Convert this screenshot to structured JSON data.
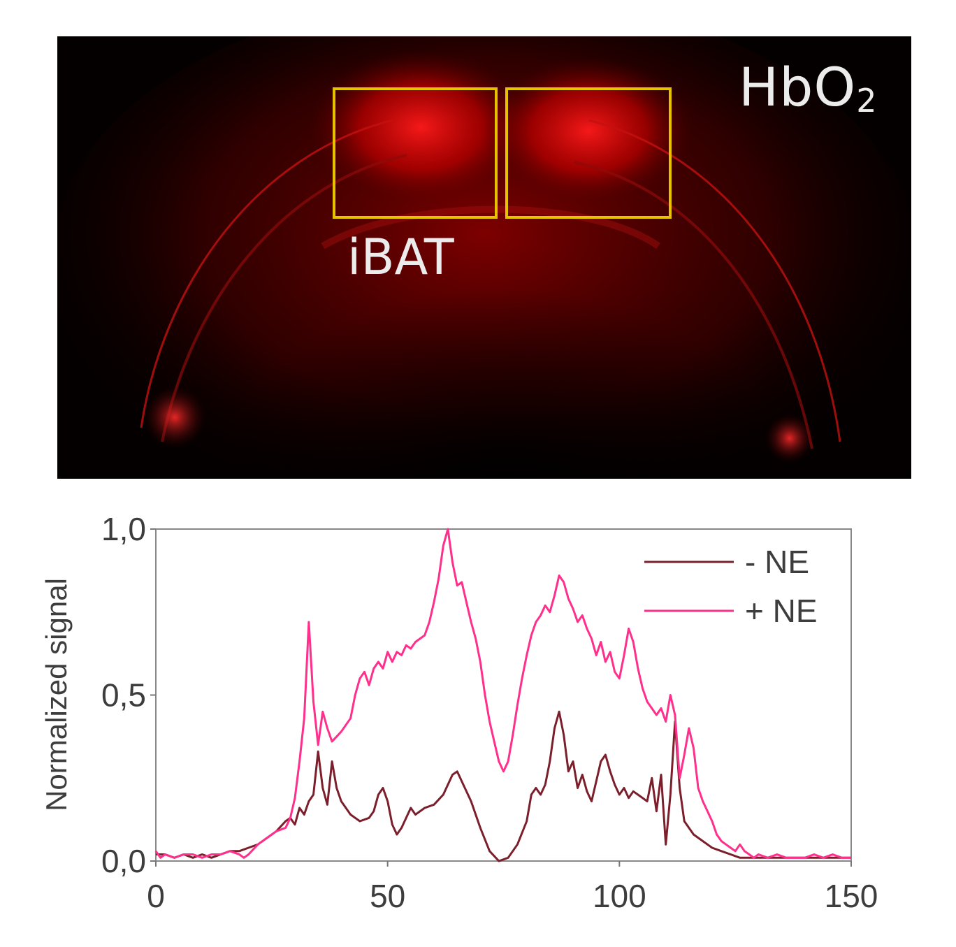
{
  "image_panel": {
    "modality_label": "HbO",
    "modality_subscript": "2",
    "roi_label": "iBAT",
    "roi_color": "#e6c200",
    "signal_color": "#ff1a1a"
  },
  "chart_data": {
    "type": "line",
    "title": "",
    "xlabel": "",
    "ylabel": "Normalized signal",
    "xlim": [
      0,
      150
    ],
    "ylim": [
      0,
      1.0
    ],
    "x_ticks": [
      "0",
      "50",
      "100",
      "150"
    ],
    "y_ticks": [
      "0,0",
      "0,5",
      "1,0"
    ],
    "grid": false,
    "legend_position": "top-right",
    "series": [
      {
        "name": "- NE",
        "color": "#7a1f2b",
        "points": [
          [
            0,
            0.02
          ],
          [
            2,
            0.02
          ],
          [
            4,
            0.01
          ],
          [
            6,
            0.02
          ],
          [
            8,
            0.01
          ],
          [
            10,
            0.02
          ],
          [
            12,
            0.01
          ],
          [
            14,
            0.02
          ],
          [
            16,
            0.03
          ],
          [
            18,
            0.03
          ],
          [
            20,
            0.04
          ],
          [
            22,
            0.05
          ],
          [
            24,
            0.07
          ],
          [
            26,
            0.09
          ],
          [
            28,
            0.12
          ],
          [
            29,
            0.13
          ],
          [
            30,
            0.11
          ],
          [
            31,
            0.16
          ],
          [
            32,
            0.14
          ],
          [
            33,
            0.18
          ],
          [
            34,
            0.2
          ],
          [
            35,
            0.33
          ],
          [
            36,
            0.22
          ],
          [
            37,
            0.17
          ],
          [
            38,
            0.3
          ],
          [
            39,
            0.22
          ],
          [
            40,
            0.18
          ],
          [
            42,
            0.14
          ],
          [
            44,
            0.12
          ],
          [
            46,
            0.13
          ],
          [
            47,
            0.15
          ],
          [
            48,
            0.2
          ],
          [
            49,
            0.22
          ],
          [
            50,
            0.18
          ],
          [
            51,
            0.11
          ],
          [
            52,
            0.08
          ],
          [
            53,
            0.1
          ],
          [
            54,
            0.13
          ],
          [
            55,
            0.16
          ],
          [
            56,
            0.14
          ],
          [
            58,
            0.16
          ],
          [
            60,
            0.17
          ],
          [
            62,
            0.2
          ],
          [
            64,
            0.26
          ],
          [
            65,
            0.27
          ],
          [
            66,
            0.24
          ],
          [
            68,
            0.18
          ],
          [
            70,
            0.1
          ],
          [
            72,
            0.03
          ],
          [
            74,
            0.0
          ],
          [
            76,
            0.01
          ],
          [
            78,
            0.05
          ],
          [
            80,
            0.12
          ],
          [
            81,
            0.2
          ],
          [
            82,
            0.22
          ],
          [
            83,
            0.2
          ],
          [
            84,
            0.23
          ],
          [
            85,
            0.3
          ],
          [
            86,
            0.4
          ],
          [
            87,
            0.45
          ],
          [
            88,
            0.38
          ],
          [
            89,
            0.27
          ],
          [
            90,
            0.3
          ],
          [
            91,
            0.22
          ],
          [
            92,
            0.26
          ],
          [
            93,
            0.21
          ],
          [
            94,
            0.18
          ],
          [
            95,
            0.24
          ],
          [
            96,
            0.3
          ],
          [
            97,
            0.32
          ],
          [
            98,
            0.27
          ],
          [
            99,
            0.23
          ],
          [
            100,
            0.2
          ],
          [
            101,
            0.22
          ],
          [
            102,
            0.19
          ],
          [
            103,
            0.21
          ],
          [
            104,
            0.2
          ],
          [
            106,
            0.18
          ],
          [
            107,
            0.25
          ],
          [
            108,
            0.15
          ],
          [
            109,
            0.26
          ],
          [
            110,
            0.05
          ],
          [
            111,
            0.2
          ],
          [
            112,
            0.42
          ],
          [
            113,
            0.22
          ],
          [
            114,
            0.12
          ],
          [
            116,
            0.08
          ],
          [
            118,
            0.06
          ],
          [
            120,
            0.04
          ],
          [
            122,
            0.03
          ],
          [
            124,
            0.02
          ],
          [
            126,
            0.01
          ],
          [
            130,
            0.01
          ],
          [
            135,
            0.01
          ],
          [
            140,
            0.01
          ],
          [
            145,
            0.01
          ],
          [
            150,
            0.01
          ]
        ]
      },
      {
        "name": "+ NE",
        "color": "#ff2f8c",
        "points": [
          [
            0,
            0.03
          ],
          [
            1,
            0.01
          ],
          [
            2,
            0.02
          ],
          [
            4,
            0.01
          ],
          [
            6,
            0.02
          ],
          [
            8,
            0.02
          ],
          [
            10,
            0.01
          ],
          [
            12,
            0.02
          ],
          [
            14,
            0.02
          ],
          [
            16,
            0.03
          ],
          [
            18,
            0.02
          ],
          [
            19,
            0.01
          ],
          [
            20,
            0.02
          ],
          [
            22,
            0.05
          ],
          [
            24,
            0.07
          ],
          [
            26,
            0.09
          ],
          [
            28,
            0.1
          ],
          [
            29,
            0.13
          ],
          [
            30,
            0.19
          ],
          [
            31,
            0.3
          ],
          [
            32,
            0.43
          ],
          [
            33,
            0.72
          ],
          [
            34,
            0.48
          ],
          [
            35,
            0.35
          ],
          [
            36,
            0.45
          ],
          [
            37,
            0.4
          ],
          [
            38,
            0.36
          ],
          [
            40,
            0.39
          ],
          [
            42,
            0.43
          ],
          [
            43,
            0.5
          ],
          [
            44,
            0.55
          ],
          [
            45,
            0.57
          ],
          [
            46,
            0.53
          ],
          [
            47,
            0.58
          ],
          [
            48,
            0.6
          ],
          [
            49,
            0.58
          ],
          [
            50,
            0.63
          ],
          [
            51,
            0.6
          ],
          [
            52,
            0.63
          ],
          [
            53,
            0.62
          ],
          [
            54,
            0.65
          ],
          [
            55,
            0.64
          ],
          [
            56,
            0.66
          ],
          [
            58,
            0.68
          ],
          [
            59,
            0.72
          ],
          [
            60,
            0.78
          ],
          [
            61,
            0.85
          ],
          [
            62,
            0.95
          ],
          [
            63,
            1.0
          ],
          [
            64,
            0.9
          ],
          [
            65,
            0.83
          ],
          [
            66,
            0.84
          ],
          [
            67,
            0.78
          ],
          [
            68,
            0.72
          ],
          [
            69,
            0.67
          ],
          [
            70,
            0.6
          ],
          [
            71,
            0.5
          ],
          [
            72,
            0.42
          ],
          [
            73,
            0.36
          ],
          [
            74,
            0.3
          ],
          [
            75,
            0.27
          ],
          [
            76,
            0.3
          ],
          [
            77,
            0.38
          ],
          [
            78,
            0.47
          ],
          [
            79,
            0.55
          ],
          [
            80,
            0.62
          ],
          [
            81,
            0.68
          ],
          [
            82,
            0.72
          ],
          [
            83,
            0.74
          ],
          [
            84,
            0.77
          ],
          [
            85,
            0.75
          ],
          [
            86,
            0.8
          ],
          [
            87,
            0.86
          ],
          [
            88,
            0.84
          ],
          [
            89,
            0.79
          ],
          [
            90,
            0.76
          ],
          [
            91,
            0.72
          ],
          [
            92,
            0.74
          ],
          [
            93,
            0.7
          ],
          [
            94,
            0.67
          ],
          [
            95,
            0.62
          ],
          [
            96,
            0.66
          ],
          [
            97,
            0.6
          ],
          [
            98,
            0.63
          ],
          [
            99,
            0.57
          ],
          [
            100,
            0.55
          ],
          [
            101,
            0.62
          ],
          [
            102,
            0.7
          ],
          [
            103,
            0.66
          ],
          [
            104,
            0.58
          ],
          [
            105,
            0.52
          ],
          [
            106,
            0.48
          ],
          [
            107,
            0.46
          ],
          [
            108,
            0.44
          ],
          [
            109,
            0.46
          ],
          [
            110,
            0.42
          ],
          [
            111,
            0.5
          ],
          [
            112,
            0.44
          ],
          [
            113,
            0.25
          ],
          [
            114,
            0.32
          ],
          [
            115,
            0.4
          ],
          [
            116,
            0.34
          ],
          [
            117,
            0.22
          ],
          [
            118,
            0.18
          ],
          [
            119,
            0.15
          ],
          [
            120,
            0.12
          ],
          [
            121,
            0.08
          ],
          [
            122,
            0.06
          ],
          [
            123,
            0.05
          ],
          [
            124,
            0.04
          ],
          [
            125,
            0.03
          ],
          [
            126,
            0.05
          ],
          [
            127,
            0.03
          ],
          [
            128,
            0.02
          ],
          [
            129,
            0.01
          ],
          [
            130,
            0.02
          ],
          [
            132,
            0.01
          ],
          [
            134,
            0.02
          ],
          [
            136,
            0.01
          ],
          [
            138,
            0.01
          ],
          [
            140,
            0.01
          ],
          [
            142,
            0.02
          ],
          [
            144,
            0.01
          ],
          [
            146,
            0.02
          ],
          [
            148,
            0.01
          ],
          [
            150,
            0.01
          ]
        ]
      }
    ]
  }
}
